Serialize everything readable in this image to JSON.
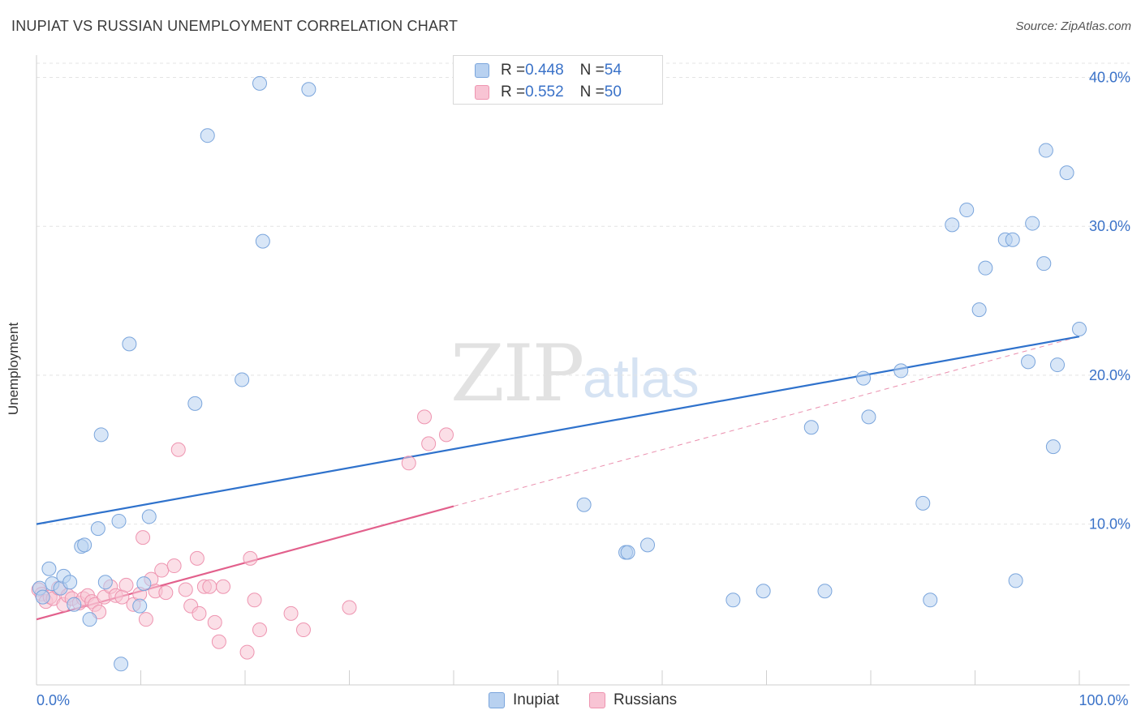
{
  "header": {
    "title": "INUPIAT VS RUSSIAN UNEMPLOYMENT CORRELATION CHART",
    "source": "Source: ZipAtlas.com"
  },
  "watermark": {
    "zip": "ZIP",
    "atlas": "atlas"
  },
  "legend_top": {
    "inupiat": {
      "r_label": "R = ",
      "r_value": "0.448",
      "n_label": "N = ",
      "n_value": "54"
    },
    "russians": {
      "r_label": "R = ",
      "r_value": "0.552",
      "n_label": "N = ",
      "n_value": "50"
    }
  },
  "legend_bottom": {
    "inupiat": "Inupiat",
    "russians": "Russians"
  },
  "colors": {
    "inupiat_fill": "#b8d1f0",
    "inupiat_stroke": "#7aa5dc",
    "inupiat_line": "#2f72cc",
    "russians_fill": "#f8c4d4",
    "russians_stroke": "#ee94b0",
    "russians_line": "#e2608c",
    "tick": "#3a72c8",
    "grid": "#e4e4e4"
  },
  "chart_data": {
    "type": "scatter",
    "title": "INUPIAT VS RUSSIAN UNEMPLOYMENT CORRELATION CHART",
    "xlabel": "",
    "ylabel": "Unemployment",
    "xlim": [
      0,
      100
    ],
    "ylim": [
      -0.8,
      41.5
    ],
    "x_ticks": [
      0,
      100
    ],
    "x_tick_labels": [
      "0.0%",
      "100.0%"
    ],
    "y_ticks": [
      10,
      20,
      30,
      40
    ],
    "y_tick_labels": [
      "10.0%",
      "20.0%",
      "30.0%",
      "40.0%"
    ],
    "grid": true,
    "legend_position": "top-center",
    "series": [
      {
        "name": "Inupiat",
        "r": 0.448,
        "n": 54,
        "trend": {
          "x": [
            0,
            100
          ],
          "y": [
            10.0,
            22.6
          ]
        },
        "points": [
          [
            0.3,
            5.7
          ],
          [
            0.6,
            5.1
          ],
          [
            1.2,
            7.0
          ],
          [
            1.5,
            6.0
          ],
          [
            2.3,
            5.7
          ],
          [
            2.6,
            6.5
          ],
          [
            3.2,
            6.1
          ],
          [
            3.6,
            4.6
          ],
          [
            4.3,
            8.5
          ],
          [
            4.6,
            8.6
          ],
          [
            5.1,
            3.6
          ],
          [
            5.9,
            9.7
          ],
          [
            6.2,
            16.0
          ],
          [
            6.6,
            6.1
          ],
          [
            7.9,
            10.2
          ],
          [
            8.1,
            0.6
          ],
          [
            8.9,
            22.1
          ],
          [
            9.9,
            4.5
          ],
          [
            10.3,
            6.0
          ],
          [
            10.8,
            10.5
          ],
          [
            15.2,
            18.1
          ],
          [
            16.4,
            36.1
          ],
          [
            19.7,
            19.7
          ],
          [
            21.4,
            39.6
          ],
          [
            21.7,
            29.0
          ],
          [
            26.1,
            39.2
          ],
          [
            52.5,
            11.3
          ],
          [
            56.5,
            8.1
          ],
          [
            56.7,
            8.1
          ],
          [
            58.6,
            8.6
          ],
          [
            66.8,
            4.9
          ],
          [
            69.7,
            5.5
          ],
          [
            75.6,
            5.5
          ],
          [
            74.3,
            16.5
          ],
          [
            79.3,
            19.8
          ],
          [
            79.8,
            17.2
          ],
          [
            82.9,
            20.3
          ],
          [
            85.0,
            11.4
          ],
          [
            85.7,
            4.9
          ],
          [
            87.8,
            30.1
          ],
          [
            89.2,
            31.1
          ],
          [
            90.4,
            24.4
          ],
          [
            91.0,
            27.2
          ],
          [
            92.9,
            29.1
          ],
          [
            93.6,
            29.1
          ],
          [
            93.9,
            6.2
          ],
          [
            95.1,
            20.9
          ],
          [
            95.5,
            30.2
          ],
          [
            96.6,
            27.5
          ],
          [
            96.8,
            35.1
          ],
          [
            97.5,
            15.2
          ],
          [
            97.9,
            20.7
          ],
          [
            98.8,
            33.6
          ],
          [
            100.0,
            23.1
          ]
        ]
      },
      {
        "name": "Russians",
        "r": 0.552,
        "n": 50,
        "trend": {
          "x": [
            0,
            40
          ],
          "y": [
            3.6,
            11.2
          ]
        },
        "trend_extended": {
          "x": [
            40,
            100
          ],
          "y": [
            11.2,
            22.6
          ]
        },
        "points": [
          [
            0.2,
            5.6
          ],
          [
            0.5,
            5.3
          ],
          [
            0.9,
            4.8
          ],
          [
            1.3,
            5.1
          ],
          [
            1.6,
            5.0
          ],
          [
            2.1,
            5.7
          ],
          [
            2.6,
            4.6
          ],
          [
            3.0,
            5.2
          ],
          [
            3.4,
            5.0
          ],
          [
            4.1,
            4.7
          ],
          [
            4.5,
            5.0
          ],
          [
            4.9,
            5.2
          ],
          [
            5.3,
            4.8
          ],
          [
            5.6,
            4.6
          ],
          [
            6.0,
            4.1
          ],
          [
            6.5,
            5.1
          ],
          [
            7.1,
            5.8
          ],
          [
            7.6,
            5.2
          ],
          [
            8.2,
            5.1
          ],
          [
            8.6,
            5.9
          ],
          [
            9.3,
            4.6
          ],
          [
            9.9,
            5.3
          ],
          [
            10.2,
            9.1
          ],
          [
            10.5,
            3.6
          ],
          [
            11.0,
            6.3
          ],
          [
            11.4,
            5.5
          ],
          [
            12.0,
            6.9
          ],
          [
            12.4,
            5.4
          ],
          [
            13.2,
            7.2
          ],
          [
            13.6,
            15.0
          ],
          [
            14.3,
            5.6
          ],
          [
            14.8,
            4.5
          ],
          [
            15.4,
            7.7
          ],
          [
            15.6,
            4.0
          ],
          [
            16.1,
            5.8
          ],
          [
            16.6,
            5.8
          ],
          [
            17.1,
            3.4
          ],
          [
            17.5,
            2.1
          ],
          [
            17.9,
            5.8
          ],
          [
            20.2,
            1.4
          ],
          [
            20.5,
            7.7
          ],
          [
            20.9,
            4.9
          ],
          [
            21.4,
            2.9
          ],
          [
            24.4,
            4.0
          ],
          [
            25.6,
            2.9
          ],
          [
            30.0,
            4.4
          ],
          [
            35.7,
            14.1
          ],
          [
            37.2,
            17.2
          ],
          [
            37.6,
            15.4
          ],
          [
            39.3,
            16.0
          ]
        ]
      }
    ]
  }
}
